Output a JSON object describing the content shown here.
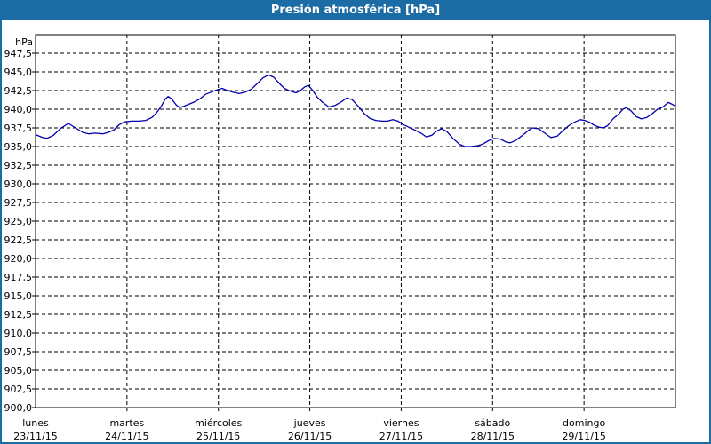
{
  "window": {
    "title": "Presión atmosférica [hPa]"
  },
  "colors": {
    "titlebar_bg": "#1b6ba4",
    "titlebar_text": "#ffffff",
    "window_border": "#1b6ba4",
    "background": "#ffffff",
    "line": "#0000b0",
    "grid": "#000000",
    "axis_text": "#000000"
  },
  "chart_data": {
    "type": "line",
    "title": "Presión atmosférica [hPa]",
    "ylabel": "hPa",
    "unit": "hPa",
    "y_min": 900,
    "y_max": 950,
    "y_tick_start": 947.5,
    "y_tick_step": 2.5,
    "y_tick_labels": [
      "947,5",
      "945,0",
      "942,5",
      "940,0",
      "937,5",
      "935,0",
      "932,5",
      "930,0",
      "927,5",
      "925,0",
      "922,5",
      "920,0",
      "917,5",
      "915,0",
      "912,5",
      "910,0",
      "907,5",
      "905,0",
      "902,5",
      "900,0"
    ],
    "x_range_hours": [
      0,
      168
    ],
    "x_tick_hours": [
      0,
      24,
      48,
      72,
      96,
      120,
      144
    ],
    "x_axis_days": [
      {
        "day": "lunes",
        "date": "23/11/15"
      },
      {
        "day": "martes",
        "date": "24/11/15"
      },
      {
        "day": "miércoles",
        "date": "25/11/15"
      },
      {
        "day": "jueves",
        "date": "26/11/15"
      },
      {
        "day": "viernes",
        "date": "27/11/15"
      },
      {
        "day": "sábado",
        "date": "28/11/15"
      },
      {
        "day": "domingo",
        "date": "29/11/15"
      }
    ],
    "grid": "dashed",
    "legend": "none",
    "series": [
      {
        "name": "Presión atmosférica",
        "points": [
          [
            0,
            936.6
          ],
          [
            1.9,
            936.2
          ],
          [
            3,
            936.1
          ],
          [
            4.7,
            936.5
          ],
          [
            6.5,
            937.4
          ],
          [
            8.6,
            938.1
          ],
          [
            10.5,
            937.5
          ],
          [
            12.4,
            936.9
          ],
          [
            14,
            936.7
          ],
          [
            15.6,
            936.8
          ],
          [
            17.7,
            936.7
          ],
          [
            19.1,
            936.9
          ],
          [
            20.5,
            937.2
          ],
          [
            21.9,
            937.9
          ],
          [
            23.3,
            938.3
          ],
          [
            25.2,
            938.4
          ],
          [
            27.1,
            938.4
          ],
          [
            28.9,
            938.5
          ],
          [
            30.6,
            938.9
          ],
          [
            31.7,
            939.5
          ],
          [
            32.9,
            940.3
          ],
          [
            34.1,
            941.4
          ],
          [
            34.8,
            941.7
          ],
          [
            35.7,
            941.4
          ],
          [
            36.9,
            940.6
          ],
          [
            37.8,
            940.2
          ],
          [
            39,
            940.4
          ],
          [
            40.4,
            940.7
          ],
          [
            41.8,
            941
          ],
          [
            43.2,
            941.4
          ],
          [
            44.6,
            942
          ],
          [
            46.2,
            942.3
          ],
          [
            47.6,
            942.6
          ],
          [
            49,
            942.8
          ],
          [
            50.4,
            942.5
          ],
          [
            51.8,
            942.3
          ],
          [
            53.4,
            942.1
          ],
          [
            55.1,
            942.3
          ],
          [
            56.7,
            942.7
          ],
          [
            58.3,
            943.5
          ],
          [
            59.7,
            944.2
          ],
          [
            61.1,
            944.6
          ],
          [
            62.5,
            944.3
          ],
          [
            63.9,
            943.5
          ],
          [
            65.3,
            942.8
          ],
          [
            67,
            942.4
          ],
          [
            68.4,
            942.2
          ],
          [
            69.5,
            942.5
          ],
          [
            70.7,
            943
          ],
          [
            71.6,
            943.2
          ],
          [
            72.8,
            942.5
          ],
          [
            74,
            941.6
          ],
          [
            75.4,
            940.9
          ],
          [
            77,
            940.3
          ],
          [
            78.6,
            940.5
          ],
          [
            80.3,
            941
          ],
          [
            81.7,
            941.5
          ],
          [
            83.1,
            941.3
          ],
          [
            84.7,
            940.4
          ],
          [
            86.3,
            939.4
          ],
          [
            87.7,
            938.8
          ],
          [
            89.3,
            938.5
          ],
          [
            91,
            938.4
          ],
          [
            92.4,
            938.4
          ],
          [
            93.8,
            938.6
          ],
          [
            95.2,
            938.4
          ],
          [
            96.3,
            938
          ],
          [
            98,
            937.6
          ],
          [
            99.6,
            937.2
          ],
          [
            101.2,
            936.8
          ],
          [
            102.6,
            936.3
          ],
          [
            104,
            936.5
          ],
          [
            105.4,
            937.1
          ],
          [
            106.6,
            937.4
          ],
          [
            108,
            937
          ],
          [
            109.6,
            936.1
          ],
          [
            111.3,
            935.3
          ],
          [
            112.7,
            935
          ],
          [
            114.3,
            935
          ],
          [
            115.9,
            935.1
          ],
          [
            117.3,
            935.3
          ],
          [
            119,
            935.8
          ],
          [
            120.4,
            936.1
          ],
          [
            122,
            936
          ],
          [
            123.6,
            935.6
          ],
          [
            124.6,
            935.5
          ],
          [
            126,
            935.8
          ],
          [
            127.6,
            936.4
          ],
          [
            129,
            937
          ],
          [
            130.4,
            937.5
          ],
          [
            132,
            937.4
          ],
          [
            133.7,
            936.8
          ],
          [
            135.3,
            936.2
          ],
          [
            137,
            936.4
          ],
          [
            138.4,
            937.1
          ],
          [
            140,
            937.8
          ],
          [
            141.6,
            938.3
          ],
          [
            143,
            938.6
          ],
          [
            144.2,
            938.5
          ],
          [
            145.3,
            938.3
          ],
          [
            146.5,
            937.9
          ],
          [
            147.9,
            937.6
          ],
          [
            149.1,
            937.5
          ],
          [
            150.2,
            937.8
          ],
          [
            151.6,
            938.7
          ],
          [
            153,
            939.3
          ],
          [
            154.2,
            940
          ],
          [
            155.1,
            940.2
          ],
          [
            156.3,
            939.8
          ],
          [
            157.7,
            939
          ],
          [
            159.1,
            938.7
          ],
          [
            160.5,
            938.9
          ],
          [
            161.9,
            939.4
          ],
          [
            163.3,
            940
          ],
          [
            164.7,
            940.3
          ],
          [
            166.1,
            940.9
          ],
          [
            167,
            940.7
          ],
          [
            167.7,
            940.5
          ]
        ]
      }
    ]
  }
}
